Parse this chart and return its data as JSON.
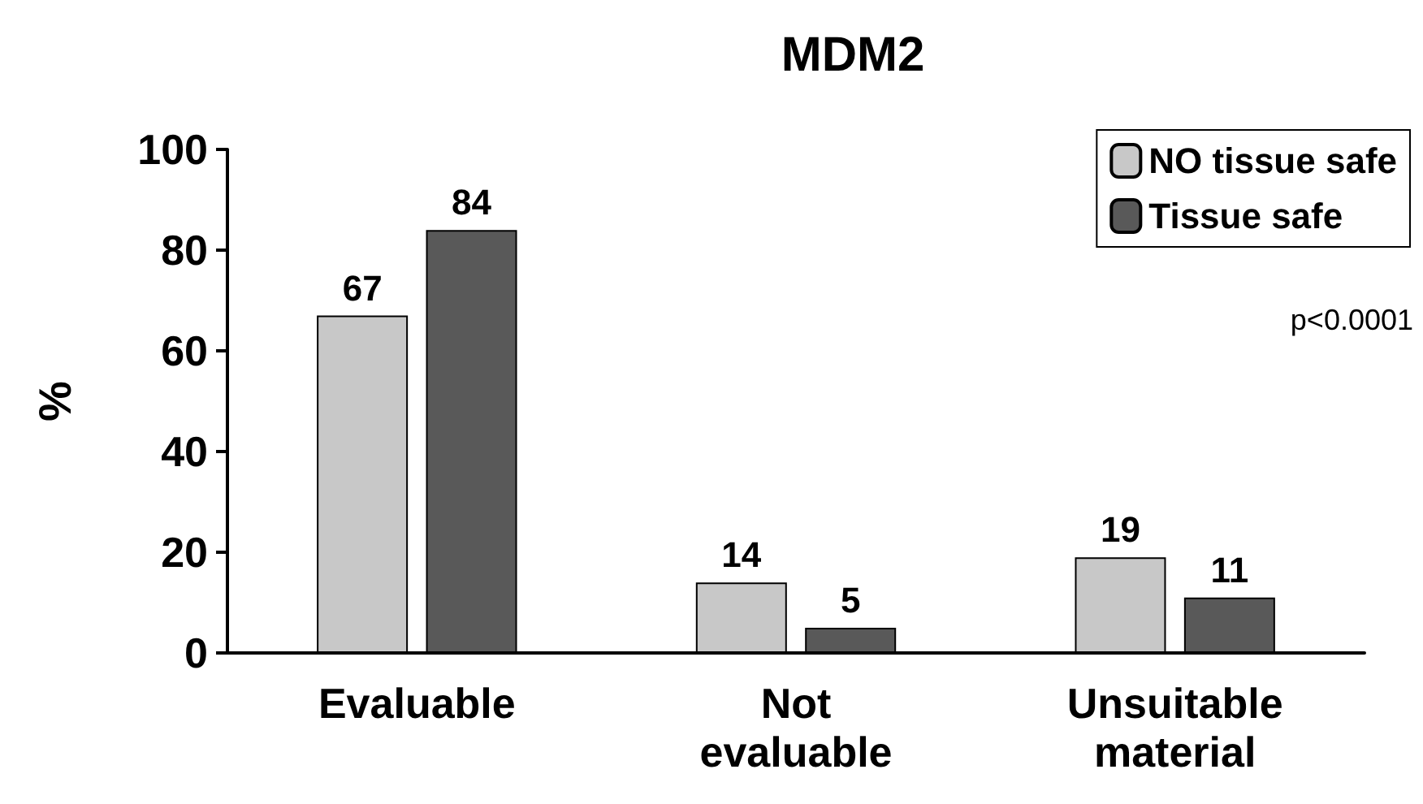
{
  "chart_data": {
    "type": "bar",
    "title": "MDM2",
    "ylabel": "%",
    "categories": [
      "Evaluable",
      "Not evaluable",
      "Unsuitable material"
    ],
    "series": [
      {
        "name": "NO tissue safe",
        "color": "#c8c8c8",
        "values": [
          67,
          14,
          19
        ]
      },
      {
        "name": "Tissue safe",
        "color": "#595959",
        "values": [
          84,
          5,
          11
        ]
      }
    ],
    "ylim": [
      0,
      100
    ],
    "yticks": [
      0,
      20,
      40,
      60,
      80,
      100
    ],
    "grid": false,
    "legend": "top right",
    "data_labels": true,
    "annotations": [
      "p<0.0001"
    ]
  }
}
